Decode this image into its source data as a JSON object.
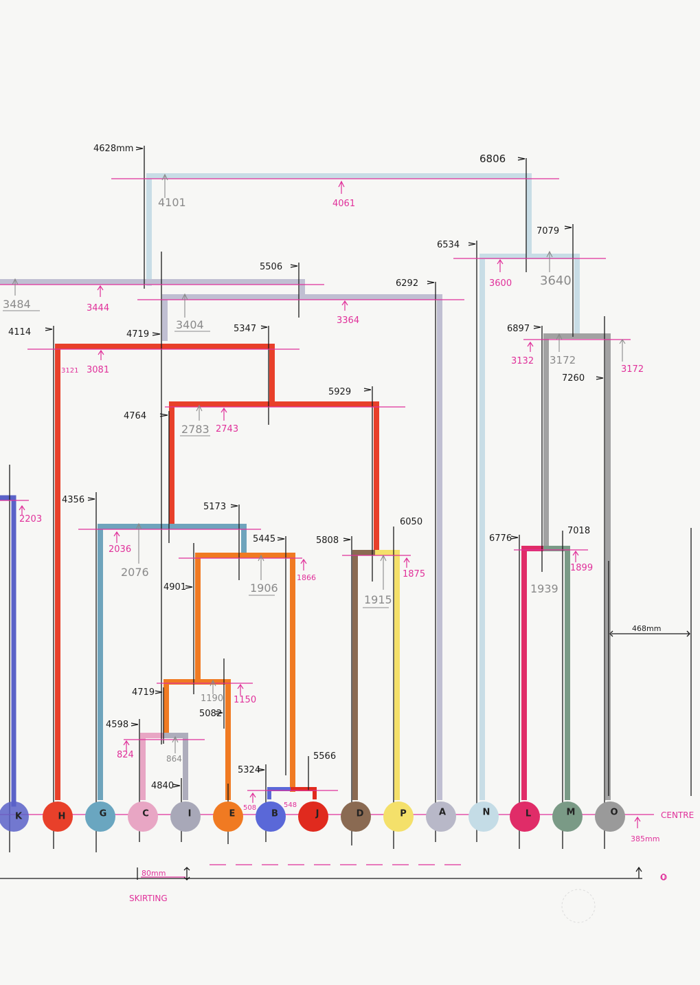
{
  "colors": {
    "pink_line": "#e0309a",
    "ink": "#1a1a1a",
    "K": "#5a62c8",
    "H": "#e8402a",
    "G": "#6aa6c0",
    "C": "#e8a6c4",
    "I": "#a8a8b8",
    "E": "#f07a22",
    "B": "#5a68d8",
    "J": "#e02a1e",
    "D": "#8a6a52",
    "P": "#f4e06a",
    "A": "#b8b8c8",
    "N": "#c4dce6",
    "L": "#e02c68",
    "M": "#7a9a86",
    "O": "#9a9a9a"
  },
  "nodes": [
    "K",
    "H",
    "G",
    "C",
    "I",
    "E",
    "B",
    "J",
    "D",
    "P",
    "A",
    "N",
    "L",
    "M",
    "O"
  ],
  "labels": {
    "centre": "CENTRE",
    "centre_offset": "385mm",
    "zero": "0",
    "skirting": "SKIRTING",
    "skirting_height": "80mm",
    "spacing": "468mm"
  },
  "black_values": {
    "b4628": "4628mm",
    "b6806": "6806",
    "b7079": "7079",
    "b6534": "6534",
    "b5506": "5506",
    "b6292": "6292",
    "b4114": "4114",
    "b4719top": "4719",
    "b5347": "5347",
    "b6897": "6897",
    "b7260": "7260",
    "b5929": "5929",
    "b4764": "4764",
    "b4356": "4356",
    "b5173": "5173",
    "b5445": "5445",
    "b5808": "5808",
    "b6050": "6050",
    "b6776": "6776",
    "b7018": "7018",
    "b4901": "4901",
    "b4719low": "4719",
    "b5082": "5082",
    "b4598": "4598",
    "b4840": "4840",
    "b5324": "5324",
    "b5566": "5566"
  },
  "magenta_values": {
    "m4061": "4061",
    "m3600": "3600",
    "m3444": "3444",
    "m3364": "3364",
    "m3081": "3081",
    "m3121": "3121",
    "m3132": "3132",
    "m3172": "3172",
    "m2743": "2743",
    "m2203": "2203",
    "m2036": "2036",
    "m1866": "1866",
    "m1875": "1875",
    "m1899": "1899",
    "m1150": "1150",
    "m824": "824",
    "m508": "508",
    "m548": "548"
  },
  "grey_values": {
    "g4101": "4101",
    "g3640": "3640",
    "g3484": "3484",
    "g3404": "3404",
    "g3172": "3172",
    "g2783": "2783",
    "g2076": "2076",
    "g1906": "1906",
    "g1915": "1915",
    "g1939": "1939",
    "g1190": "1190",
    "g864": "864"
  }
}
